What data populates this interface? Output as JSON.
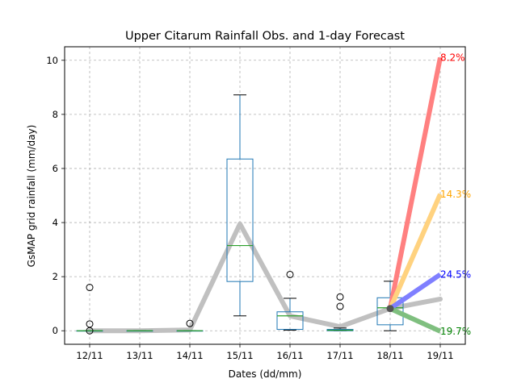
{
  "chart_data": {
    "type": "box",
    "title": "Upper Citarum Rainfall Obs. and 1-day Forecast",
    "xlabel": "Dates (dd/mm)",
    "ylabel": "GsMAP grid rainfall (mm/day)",
    "ylim": [
      -0.5,
      10.5
    ],
    "yticks": [
      0,
      2,
      4,
      6,
      8,
      10
    ],
    "ytick_labels": [
      "0",
      "2",
      "4",
      "6",
      "8",
      "10"
    ],
    "grid": true,
    "categories": [
      "12/11",
      "13/11",
      "14/11",
      "15/11",
      "16/11",
      "17/11",
      "18/11",
      "19/11"
    ],
    "boxes": [
      {
        "q1": 0.0,
        "median": 0.0,
        "q3": 0.0,
        "whisker_low": 0.0,
        "whisker_high": 0.0,
        "outliers": [
          1.6,
          0.25,
          0.0
        ]
      },
      {
        "q1": 0.0,
        "median": 0.0,
        "q3": 0.0,
        "whisker_low": 0.0,
        "whisker_high": 0.0,
        "outliers": []
      },
      {
        "q1": 0.0,
        "median": 0.0,
        "q3": 0.0,
        "whisker_low": 0.0,
        "whisker_high": 0.0,
        "outliers": [
          0.27
        ]
      },
      {
        "q1": 1.82,
        "median": 3.15,
        "q3": 6.35,
        "whisker_low": 0.55,
        "whisker_high": 8.72,
        "outliers": []
      },
      {
        "q1": 0.05,
        "median": 0.55,
        "q3": 0.7,
        "whisker_low": 0.02,
        "whisker_high": 1.2,
        "outliers": [
          2.08
        ]
      },
      {
        "q1": 0.0,
        "median": 0.02,
        "q3": 0.05,
        "whisker_low": 0.0,
        "whisker_high": 0.1,
        "outliers": [
          1.25,
          0.9
        ]
      },
      {
        "q1": 0.22,
        "median": 0.85,
        "q3": 1.22,
        "whisker_low": 0.0,
        "whisker_high": 1.83,
        "outliers": []
      }
    ],
    "mean_line": {
      "name": "mean",
      "color": "#c0c0c0",
      "values": [
        0.0,
        0.0,
        0.03,
        3.95,
        0.55,
        0.15,
        0.82,
        1.17
      ]
    },
    "forecast": {
      "from_index": 6,
      "from_value": 0.82,
      "to_index": 7,
      "branches": [
        {
          "value": 10.1,
          "label": "8.2%",
          "color": "#ff0000",
          "line_color": "#ff8080"
        },
        {
          "value": 5.05,
          "label": "14.3%",
          "color": "#ffa500",
          "line_color": "#ffd27f"
        },
        {
          "value": 2.08,
          "label": "24.5%",
          "color": "#0000ff",
          "line_color": "#7f7fff"
        },
        {
          "value": -0.02,
          "label": "19.7%",
          "color": "#008000",
          "line_color": "#7fbf7f"
        }
      ]
    },
    "colors": {
      "box": "#1f77b4",
      "median": "#2ca02c",
      "grid": "#b0b0b0"
    }
  }
}
